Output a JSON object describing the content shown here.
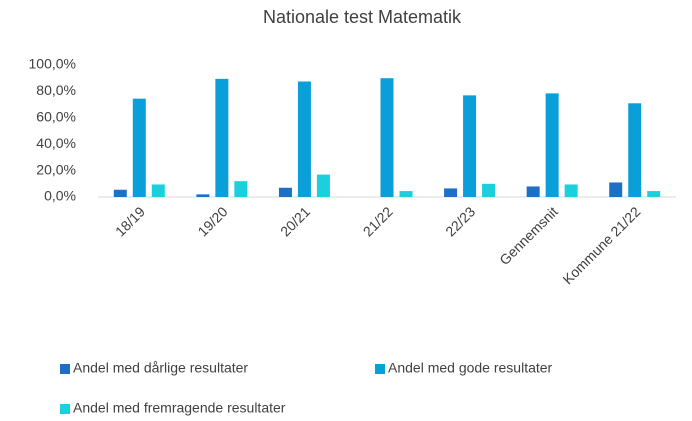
{
  "chart_data": {
    "type": "bar",
    "title": "Nationale test Matematik",
    "categories": [
      "18/19",
      "19/20",
      "20/21",
      "21/22",
      "22/23",
      "Gennemsnit",
      "Kommune 21/22"
    ],
    "series": [
      {
        "name": "Andel med dårlige resultater",
        "color": "#1f6fc4",
        "values": [
          5.5,
          2,
          7,
          0,
          6.5,
          8,
          11
        ]
      },
      {
        "name": "Andel med gode resultater",
        "color": "#0a9fd8",
        "values": [
          74.5,
          89.5,
          87.5,
          90,
          77,
          78.5,
          71
        ]
      },
      {
        "name": "Andel med fremragende resultater",
        "color": "#1bd0dc",
        "values": [
          9.5,
          12,
          17,
          4.5,
          10,
          9.5,
          4.5
        ]
      }
    ],
    "ylim": [
      0,
      100
    ],
    "yticks": [
      {
        "value": 0,
        "label": "0,0%"
      },
      {
        "value": 20,
        "label": "20,0%"
      },
      {
        "value": 40,
        "label": "40,0%"
      },
      {
        "value": 60,
        "label": "60,0%"
      },
      {
        "value": 80,
        "label": "80,0%"
      },
      {
        "value": 100,
        "label": "100,0%"
      }
    ],
    "grid": false,
    "legend": "bottom"
  }
}
